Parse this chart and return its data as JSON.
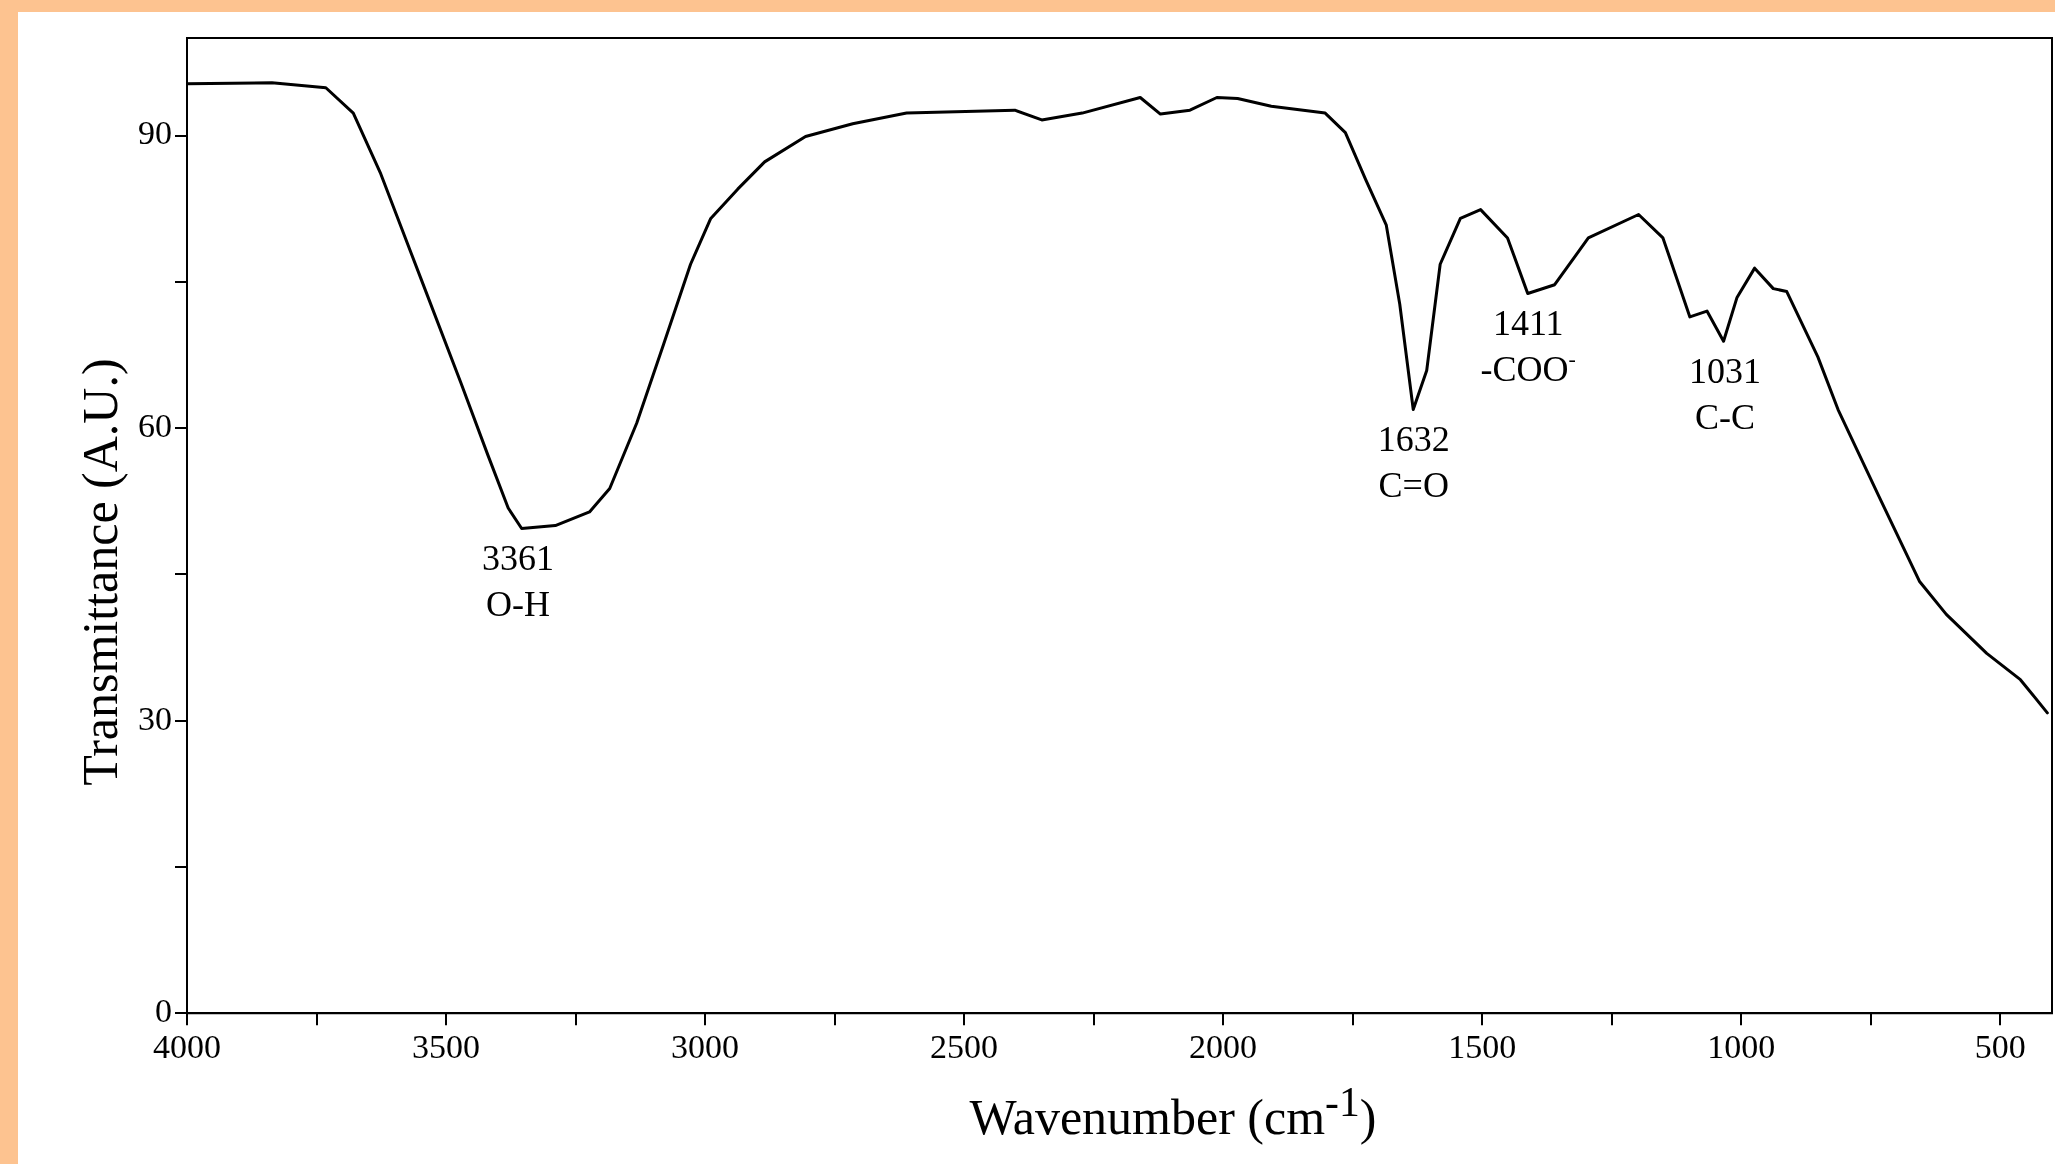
{
  "chart_data": {
    "type": "line",
    "xlabel": "Wavenumber (cm$^{-1}$)",
    "ylabel": "Transmittance (A.U.)",
    "x": [
      4000,
      3836,
      3732,
      3679,
      3627,
      3549,
      3471,
      3419,
      3380,
      3354,
      3289,
      3223,
      3184,
      3132,
      3080,
      3028,
      2989,
      2937,
      2885,
      2806,
      2715,
      2611,
      2402,
      2350,
      2272,
      2160,
      2121,
      2064,
      2012,
      1972,
      1907,
      1803,
      1764,
      1725,
      1685,
      1659,
      1633,
      1607,
      1581,
      1542,
      1503,
      1451,
      1412,
      1360,
      1295,
      1198,
      1151,
      1099,
      1066,
      1034,
      1008,
      974,
      938,
      912,
      852,
      813,
      735,
      656,
      604,
      526,
      461,
      409
    ],
    "series": [
      {
        "color": "#000000",
        "values": [
          95.3,
          95.4,
          94.9,
          92.3,
          86.2,
          75.4,
          64.6,
          57.2,
          51.8,
          49.7,
          50,
          51.4,
          53.8,
          60.5,
          68.6,
          76.8,
          81.5,
          84.5,
          87.3,
          89.9,
          91.2,
          92.3,
          92.6,
          91.6,
          92.3,
          93.9,
          92.2,
          92.6,
          93.9,
          93.8,
          93,
          92.3,
          90.3,
          85.5,
          80.8,
          72.7,
          61.9,
          65.9,
          76.8,
          81.5,
          82.4,
          79.5,
          73.8,
          74.7,
          79.5,
          81.9,
          79.5,
          71.4,
          72,
          68.9,
          73.4,
          76.4,
          74.3,
          74,
          67.3,
          61.9,
          53.1,
          44.3,
          40.9,
          36.9,
          34.2,
          30.8
        ]
      }
    ],
    "xlim": [
      4000,
      400
    ],
    "xticks": [
      4000,
      {
        "value": 3750,
        "label": null
      },
      3500,
      {
        "value": 3250,
        "label": null
      },
      3000,
      {
        "value": 2750,
        "label": null
      },
      2500,
      {
        "value": 2250,
        "label": null
      },
      2000,
      {
        "value": 1750,
        "label": null
      },
      1500,
      {
        "value": 1250,
        "label": null
      },
      1000,
      {
        "value": 750,
        "label": null
      },
      500
    ],
    "ylim": [
      0,
      100
    ],
    "yticks": [
      0,
      {
        "value": 15,
        "label": null
      },
      30,
      {
        "value": 45,
        "label": null
      },
      60,
      {
        "value": 75,
        "label": null
      },
      90
    ],
    "marker": "none",
    "line_style": "solid",
    "legend": false,
    "annotations": [
      {
        "text": "3361",
        "x": 3361,
        "y": 49.7
      },
      {
        "text": "O-H",
        "x": 3361,
        "y": 49.7
      },
      {
        "text": "1632",
        "x": 1632,
        "y": 61.9
      },
      {
        "text": "C=O",
        "x": 1632,
        "y": 61.9
      },
      {
        "text": "1411",
        "x": 1411,
        "y": 73.8
      },
      {
        "text": "-COO$^{-}$",
        "x": 1411,
        "y": 73.8
      },
      {
        "text": "1031",
        "x": 1031,
        "y": 68.9
      },
      {
        "text": "C-C",
        "x": 1031,
        "y": 68.9
      }
    ]
  }
}
